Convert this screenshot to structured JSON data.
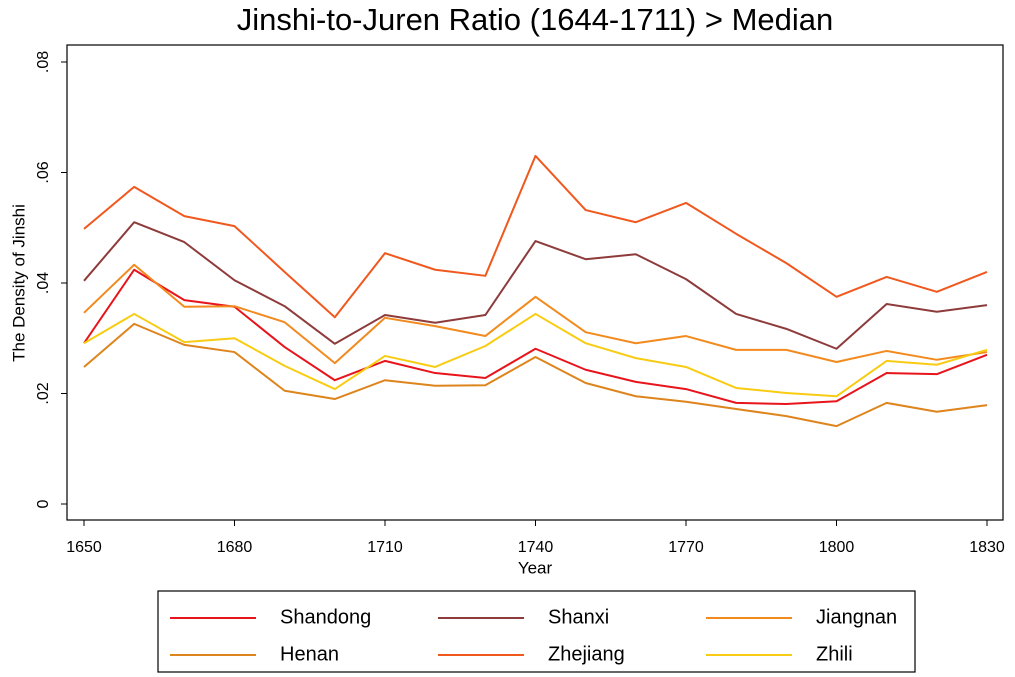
{
  "chart_data": {
    "type": "line",
    "title": "Jinshi-to-Juren Ratio (1644-1711) > Median",
    "x_label": "Year",
    "y_label": "The Density of Jinshi",
    "x": [
      1650,
      1660,
      1670,
      1680,
      1690,
      1700,
      1710,
      1720,
      1730,
      1740,
      1750,
      1760,
      1770,
      1780,
      1790,
      1800,
      1810,
      1820,
      1830
    ],
    "xlim": [
      1650,
      1830
    ],
    "xticks": [
      1650,
      1680,
      1710,
      1740,
      1770,
      1800,
      1830
    ],
    "ylim": [
      0,
      0.08
    ],
    "yticks": [
      0,
      {
        "value": 0.02,
        "label": ".02"
      },
      {
        "value": 0.04,
        "label": ".04"
      },
      {
        "value": 0.06,
        "label": ".06"
      },
      {
        "value": 0.08,
        "label": ".08"
      }
    ],
    "grid": false,
    "legend": "bottom",
    "series": [
      {
        "name": "Shandong",
        "color": "#e8141c",
        "values": [
          0.0291,
          0.0424,
          0.0369,
          0.0357,
          0.0284,
          0.0224,
          0.0259,
          0.0237,
          0.0228,
          0.0281,
          0.0243,
          0.0221,
          0.0208,
          0.0183,
          0.0181,
          0.0186,
          0.0237,
          0.0235,
          0.027
        ]
      },
      {
        "name": "Shanxi",
        "color": "#8e3b3b",
        "values": [
          0.0404,
          0.051,
          0.0474,
          0.0405,
          0.0358,
          0.029,
          0.0342,
          0.0328,
          0.0342,
          0.0476,
          0.0443,
          0.0452,
          0.0407,
          0.0344,
          0.0317,
          0.0281,
          0.0362,
          0.0348,
          0.036
        ]
      },
      {
        "name": "Jiangnan",
        "color": "#f28a1e",
        "values": [
          0.0346,
          0.0433,
          0.0357,
          0.0358,
          0.0329,
          0.0255,
          0.0337,
          0.0322,
          0.0304,
          0.0375,
          0.0311,
          0.0291,
          0.0304,
          0.0279,
          0.0279,
          0.0257,
          0.0277,
          0.0261,
          0.0275
        ]
      },
      {
        "name": "Henan",
        "color": "#de841c",
        "values": [
          0.0248,
          0.0326,
          0.0288,
          0.0275,
          0.0205,
          0.019,
          0.0224,
          0.0214,
          0.0215,
          0.0266,
          0.0219,
          0.0195,
          0.0185,
          0.0172,
          0.0159,
          0.0141,
          0.0183,
          0.0167,
          0.0179
        ]
      },
      {
        "name": "Zhejiang",
        "color": "#f0581e",
        "values": [
          0.0498,
          0.0574,
          0.0521,
          0.0503,
          0.042,
          0.0338,
          0.0454,
          0.0424,
          0.0413,
          0.063,
          0.0532,
          0.051,
          0.0545,
          0.0489,
          0.0436,
          0.0375,
          0.0411,
          0.0384,
          0.042
        ]
      },
      {
        "name": "Zhili",
        "color": "#f8cc12",
        "values": [
          0.0291,
          0.0344,
          0.0293,
          0.03,
          0.025,
          0.0208,
          0.0268,
          0.0248,
          0.0286,
          0.0344,
          0.0291,
          0.0264,
          0.0248,
          0.021,
          0.0201,
          0.0195,
          0.0259,
          0.0252,
          0.0279
        ]
      }
    ]
  }
}
